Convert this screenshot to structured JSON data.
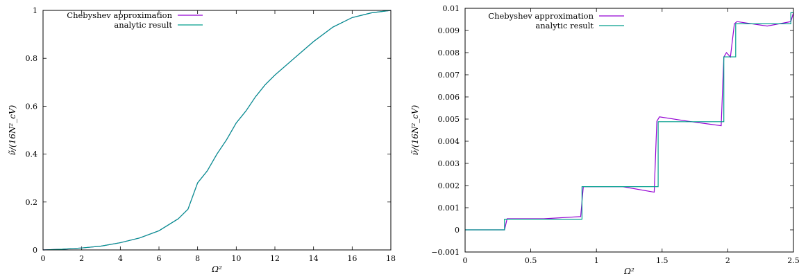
{
  "chart_data": [
    {
      "type": "line",
      "xlabel": "Ω²",
      "ylabel": "ν̃/(16N²_cV)",
      "xlim": [
        0,
        18
      ],
      "ylim": [
        0,
        1
      ],
      "xticks": [
        0,
        2,
        4,
        6,
        8,
        10,
        12,
        14,
        16,
        18
      ],
      "yticks": [
        0,
        0.2,
        0.4,
        0.6,
        0.8,
        1
      ],
      "legend_position": "top-left",
      "series": [
        {
          "name": "Chebyshev approximation",
          "color": "#9400d3",
          "x": [
            0,
            1,
            2,
            3,
            4,
            5,
            6,
            7,
            7.5,
            8,
            8.5,
            9,
            9.5,
            10,
            10.5,
            11,
            11.5,
            12,
            13,
            14,
            15,
            16,
            17,
            18
          ],
          "y": [
            0,
            0.003,
            0.008,
            0.016,
            0.03,
            0.05,
            0.08,
            0.13,
            0.17,
            0.28,
            0.33,
            0.4,
            0.46,
            0.53,
            0.58,
            0.64,
            0.69,
            0.73,
            0.8,
            0.87,
            0.93,
            0.97,
            0.99,
            1.0
          ]
        },
        {
          "name": "analytic result",
          "color": "#009e8c",
          "x": [
            0,
            1,
            2,
            3,
            4,
            5,
            6,
            7,
            7.5,
            8,
            8.5,
            9,
            9.5,
            10,
            10.5,
            11,
            11.5,
            12,
            13,
            14,
            15,
            16,
            17,
            18
          ],
          "y": [
            0,
            0.003,
            0.008,
            0.016,
            0.03,
            0.05,
            0.08,
            0.13,
            0.17,
            0.28,
            0.33,
            0.4,
            0.46,
            0.53,
            0.58,
            0.64,
            0.69,
            0.73,
            0.8,
            0.87,
            0.93,
            0.97,
            0.99,
            1.0
          ]
        }
      ]
    },
    {
      "type": "line",
      "xlabel": "Ω²",
      "ylabel": "ν̃/(16N²_cV)",
      "xlim": [
        0,
        2.5
      ],
      "ylim": [
        -0.001,
        0.01
      ],
      "xticks": [
        0,
        0.5,
        1,
        1.5,
        2,
        2.5
      ],
      "yticks": [
        -0.001,
        0,
        0.001,
        0.002,
        0.003,
        0.004,
        0.005,
        0.006,
        0.007,
        0.008,
        0.009,
        0.01
      ],
      "legend_position": "top-left",
      "series": [
        {
          "name": "Chebyshev approximation",
          "color": "#9400d3",
          "x": [
            0,
            0.3,
            0.32,
            0.6,
            0.88,
            0.9,
            1.2,
            1.44,
            1.46,
            1.48,
            1.7,
            1.95,
            1.97,
            1.99,
            2.02,
            2.05,
            2.07,
            2.3,
            2.48,
            2.5
          ],
          "y": [
            0.0,
            0.0,
            0.0005,
            0.0005,
            0.0006,
            0.00195,
            0.00195,
            0.0017,
            0.0049,
            0.0051,
            0.0049,
            0.0047,
            0.0078,
            0.008,
            0.0078,
            0.0093,
            0.0094,
            0.0092,
            0.0094,
            0.0098
          ]
        },
        {
          "name": "analytic result",
          "color": "#009e8c",
          "x": [
            0,
            0.3,
            0.3,
            0.89,
            0.89,
            1.47,
            1.47,
            1.97,
            1.97,
            2.06,
            2.06,
            2.48,
            2.48,
            2.5
          ],
          "y": [
            0,
            0,
            0.00048,
            0.00048,
            0.00195,
            0.00195,
            0.00488,
            0.00488,
            0.00781,
            0.00781,
            0.0093,
            0.0093,
            0.0098,
            0.0098
          ]
        }
      ]
    }
  ]
}
